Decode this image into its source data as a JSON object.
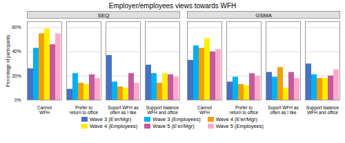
{
  "title": "Employer/employees views towards WFH",
  "legend": "bottom",
  "chart_data": [
    {
      "type": "bar",
      "title": "SEQ",
      "categories": [
        "Cannot\nWFH",
        "Prefer to\nreturn to office",
        "Suport WFH as\noften as I like",
        "Support balance\nWFH and office"
      ],
      "series": [
        {
          "name": "Wave 3 (E'er/Mgr)",
          "color": "#4472c4",
          "values": [
            26,
            9,
            37,
            29
          ]
        },
        {
          "name": "Wave 3 (Employees)",
          "color": "#00b0f0",
          "values": [
            43,
            22,
            15,
            22
          ]
        },
        {
          "name": "Wave 4 (E'er/Mgr)",
          "color": "#f0a000",
          "values": [
            55,
            14,
            11,
            14
          ]
        },
        {
          "name": "Wave 4 (Employees)",
          "color": "#ffee00",
          "values": [
            59,
            13,
            10,
            22
          ]
        },
        {
          "name": "Wave 5 (E'er/Mgr)",
          "color": "#c55a9d",
          "values": [
            46,
            21,
            22,
            21
          ]
        },
        {
          "name": "Wave 5 (Employees)",
          "color": "#ffaacc",
          "values": [
            55,
            18,
            14,
            19
          ]
        }
      ],
      "ylabel": "Percentage of participants",
      "ylim": [
        0,
        65
      ],
      "yticks": [
        {
          "value": 0,
          "label": "0%"
        },
        {
          "value": 20,
          "label": "20%"
        },
        {
          "value": 40,
          "label": "40%"
        },
        {
          "value": 60,
          "label": "60%"
        }
      ],
      "grid": true
    },
    {
      "type": "bar",
      "title": "GSMA",
      "categories": [
        "Cannot\nWFH",
        "Prefer to\nreturn to office",
        "Suport WFH as\noften as I like",
        "Support balance\nWFH and office"
      ],
      "series": [
        {
          "name": "Wave 3 (E'er/Mgr)",
          "color": "#4472c4",
          "values": [
            33,
            15,
            23,
            30
          ]
        },
        {
          "name": "Wave 3 (Employees)",
          "color": "#00b0f0",
          "values": [
            45,
            19,
            19,
            21
          ]
        },
        {
          "name": "Wave 4 (E'er/Mgr)",
          "color": "#f0a000",
          "values": [
            43,
            13,
            27,
            18
          ]
        },
        {
          "name": "Wave 4 (Employees)",
          "color": "#ffee00",
          "values": [
            51,
            12,
            10,
            18
          ]
        },
        {
          "name": "Wave 5 (E'er/Mgr)",
          "color": "#c55a9d",
          "values": [
            40,
            22,
            23,
            20
          ]
        },
        {
          "name": "Wave 5 (Employees)",
          "color": "#ffaacc",
          "values": [
            42,
            20,
            18,
            25
          ]
        }
      ],
      "ylim": [
        0,
        65
      ],
      "yticks": [
        {
          "value": 0,
          "label": "0%"
        },
        {
          "value": 20,
          "label": "20%"
        },
        {
          "value": 40,
          "label": "40%"
        },
        {
          "value": 60,
          "label": "60%"
        }
      ],
      "grid": true,
      "tick_labels": "x"
    }
  ]
}
